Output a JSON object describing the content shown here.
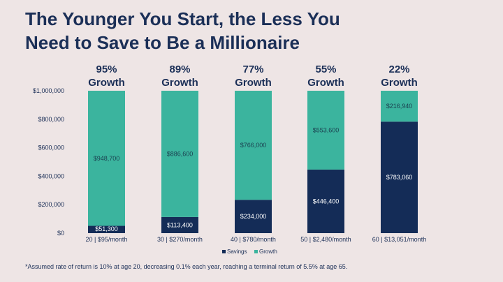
{
  "chart_data": {
    "type": "bar",
    "stacked": true,
    "title_lines": [
      "The Younger You Start, the Less You",
      "Need to Save to Be a Millionaire"
    ],
    "categories": [
      "20 | $95/month",
      "30 | $270/month",
      "40 | $780/month",
      "50 | $2,480/month",
      "60 | $13,051/month"
    ],
    "headers": [
      "95%",
      "89%",
      "77%",
      "55%",
      "22%"
    ],
    "header_suffix": "Growth",
    "series": [
      {
        "name": "Savings",
        "color": "#142c57",
        "values": [
          51300,
          113400,
          234000,
          446400,
          783060
        ],
        "labels": [
          "$51,300",
          "$113,400",
          "$234,000",
          "$446,400",
          "$783,060"
        ]
      },
      {
        "name": "Growth",
        "color": "#3bb49e",
        "values": [
          948700,
          886600,
          766000,
          553600,
          216940
        ],
        "labels": [
          "$948,700",
          "$886,600",
          "$766,000",
          "$553,600",
          "$216,940"
        ]
      }
    ],
    "ylim": [
      0,
      1000000
    ],
    "yticks": [
      0,
      200000,
      400000,
      600000,
      800000,
      1000000
    ],
    "ytick_labels": [
      "$0",
      "$200,000",
      "$400,000",
      "$600,000",
      "$800,000",
      "$1,000,000"
    ],
    "grid": false,
    "legend_position": "bottom"
  },
  "footnote": "*Assumed rate of return is 10% at age 20, decreasing 0.1% each year, reaching a terminal return of 5.5% at age 65."
}
